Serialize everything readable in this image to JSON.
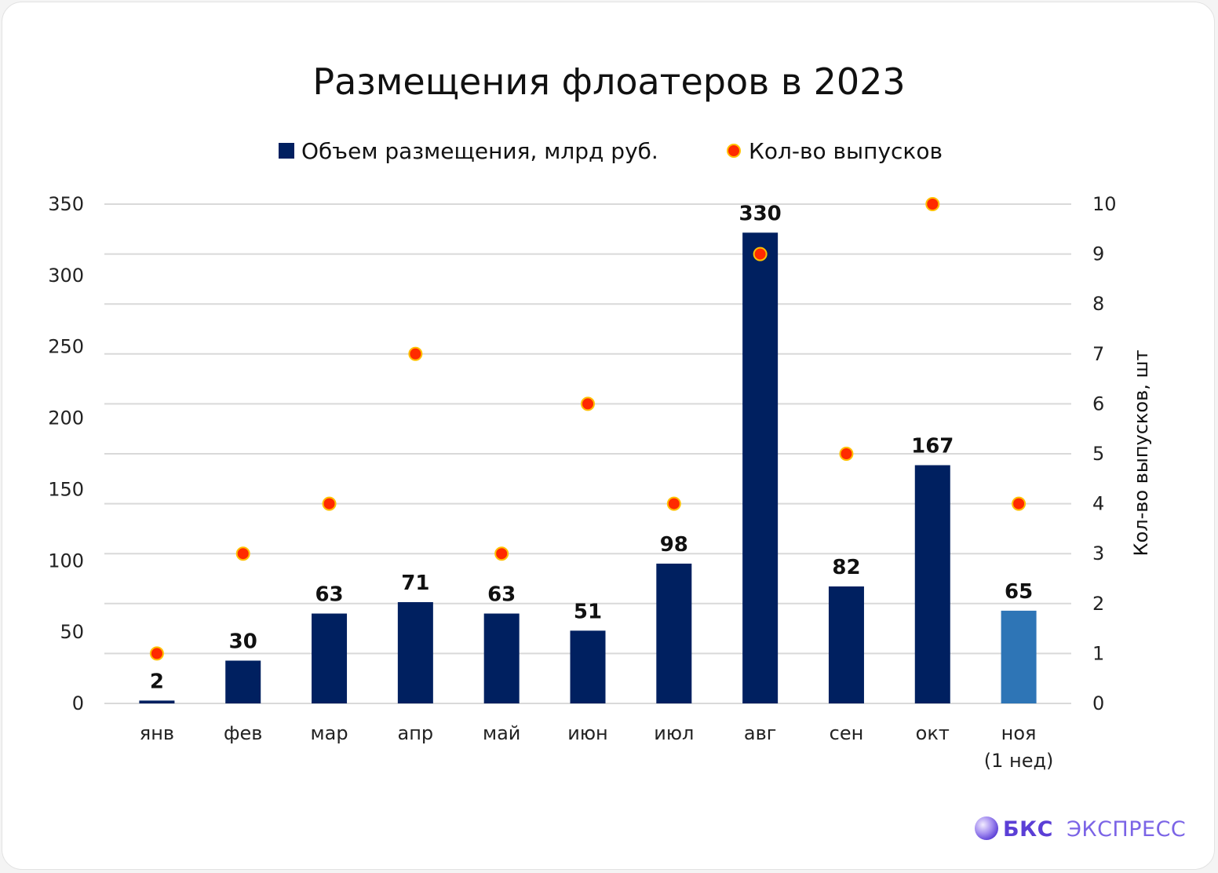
{
  "chart_data": {
    "type": "bar",
    "title": "Размещения флоатеров в 2023",
    "categories": [
      "янв",
      "фев",
      "мар",
      "апр",
      "май",
      "июн",
      "июл",
      "авг",
      "сен",
      "окт",
      "ноя (1 нед)"
    ],
    "category_lines": [
      [
        "янв"
      ],
      [
        "фев"
      ],
      [
        "мар"
      ],
      [
        "апр"
      ],
      [
        "май"
      ],
      [
        "июн"
      ],
      [
        "июл"
      ],
      [
        "авг"
      ],
      [
        "сен"
      ],
      [
        "окт"
      ],
      [
        "ноя",
        "(1 нед)"
      ]
    ],
    "series": [
      {
        "name": "Объем размещения, млрд руб.",
        "kind": "bar",
        "axis": "left",
        "color": "#002060",
        "highlight_color": "#2e75b6",
        "highlight_index": 10,
        "values": [
          2,
          30,
          63,
          71,
          63,
          51,
          98,
          330,
          82,
          167,
          65
        ]
      },
      {
        "name": "Кол-во выпусков",
        "kind": "scatter",
        "axis": "right",
        "color": "#ff2a00",
        "edge_color": "#ffc000",
        "values": [
          1,
          3,
          4,
          7,
          3,
          6,
          4,
          9,
          5,
          10,
          4
        ]
      }
    ],
    "y_left": {
      "min": 0,
      "max": 350,
      "ticks": [
        0,
        50,
        100,
        150,
        200,
        250,
        300,
        350
      ],
      "label": ""
    },
    "y_right": {
      "min": 0,
      "max": 10,
      "ticks": [
        0,
        1,
        2,
        3,
        4,
        5,
        6,
        7,
        8,
        9,
        10
      ],
      "label": "Кол-во выпусков, шт"
    },
    "grid": true,
    "legend_position": "top-center"
  },
  "brand": {
    "name": "БКС",
    "suffix": "ЭКСПРЕСС",
    "icon": "sphere-logo-icon"
  }
}
